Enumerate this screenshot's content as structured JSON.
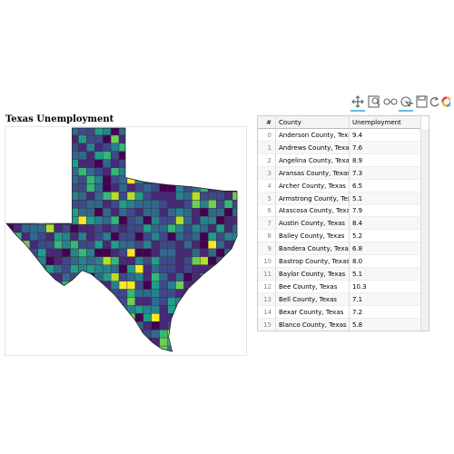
{
  "title": "Texas Unemployment",
  "table": {
    "columns": [
      "#",
      "County",
      "Unemployment"
    ],
    "rows": [
      [
        "0",
        "Anderson County, Texas",
        "9.4"
      ],
      [
        "1",
        "Andrews County, Texas",
        "7.6"
      ],
      [
        "2",
        "Angelina County, Texas",
        "8.9"
      ],
      [
        "3",
        "Aransas County, Texas",
        "7.3"
      ],
      [
        "4",
        "Archer County, Texas",
        "6.5"
      ],
      [
        "5",
        "Armstrong County, Texas",
        "5.1"
      ],
      [
        "6",
        "Atascosa County, Texas",
        "7.9"
      ],
      [
        "7",
        "Austin County, Texas",
        "8.4"
      ],
      [
        "8",
        "Bailey County, Texas",
        "5.2"
      ],
      [
        "9",
        "Bandera County, Texas",
        "6.8"
      ],
      [
        "10",
        "Bastrop County, Texas",
        "8.0"
      ],
      [
        "11",
        "Baylor County, Texas",
        "5.1"
      ],
      [
        "12",
        "Bee County, Texas",
        "10.3"
      ],
      [
        "13",
        "Bell County, Texas",
        "7.1"
      ],
      [
        "14",
        "Bexar County, Texas",
        "7.2"
      ],
      [
        "15",
        "Blanco County, Texas",
        "5.8"
      ]
    ]
  }
}
